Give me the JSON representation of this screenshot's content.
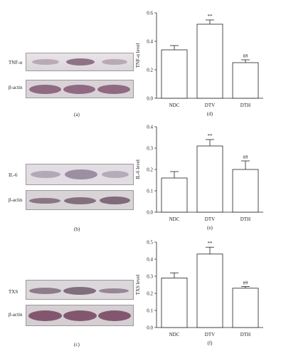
{
  "blots": [
    {
      "target_label": "TNF-α",
      "loading_label": "β-actin",
      "panel_label": "(a)"
    },
    {
      "target_label": "IL-6",
      "loading_label": "β-actin",
      "panel_label": "(b)"
    },
    {
      "target_label": "TXS",
      "loading_label": "β-actin",
      "panel_label": "(c)"
    }
  ],
  "chart_data": [
    {
      "type": "bar",
      "panel_label": "(d)",
      "ylabel": "TNF-α level",
      "categories": [
        "NDC",
        "DTV",
        "DTH"
      ],
      "values": [
        0.34,
        0.52,
        0.25
      ],
      "errors": [
        0.03,
        0.03,
        0.02
      ],
      "annotations": [
        "",
        "**",
        "##"
      ],
      "ylim": [
        0,
        0.6
      ],
      "yticks": [
        "0.0",
        "0.2",
        "0.4",
        "0.6"
      ],
      "ytick_values": [
        0,
        0.2,
        0.4,
        0.6
      ]
    },
    {
      "type": "bar",
      "panel_label": "(e)",
      "ylabel": "IL-6 level",
      "categories": [
        "NDC",
        "DTV",
        "DTH"
      ],
      "values": [
        0.16,
        0.31,
        0.2
      ],
      "errors": [
        0.03,
        0.03,
        0.04
      ],
      "annotations": [
        "",
        "**",
        "##"
      ],
      "ylim": [
        0,
        0.4
      ],
      "yticks": [
        "0.0",
        "0.1",
        "0.2",
        "0.3",
        "0.4"
      ],
      "ytick_values": [
        0,
        0.1,
        0.2,
        0.3,
        0.4
      ]
    },
    {
      "type": "bar",
      "panel_label": "(f)",
      "ylabel": "TXS level",
      "categories": [
        "NDC",
        "DTV",
        "DTH"
      ],
      "values": [
        0.29,
        0.43,
        0.23
      ],
      "errors": [
        0.03,
        0.04,
        0.01
      ],
      "annotations": [
        "",
        "**",
        "##"
      ],
      "ylim": [
        0,
        0.5
      ],
      "yticks": [
        "0.0",
        "0.1",
        "0.2",
        "0.3",
        "0.4",
        "0.5"
      ],
      "ytick_values": [
        0,
        0.1,
        0.2,
        0.3,
        0.4,
        0.5
      ]
    }
  ]
}
